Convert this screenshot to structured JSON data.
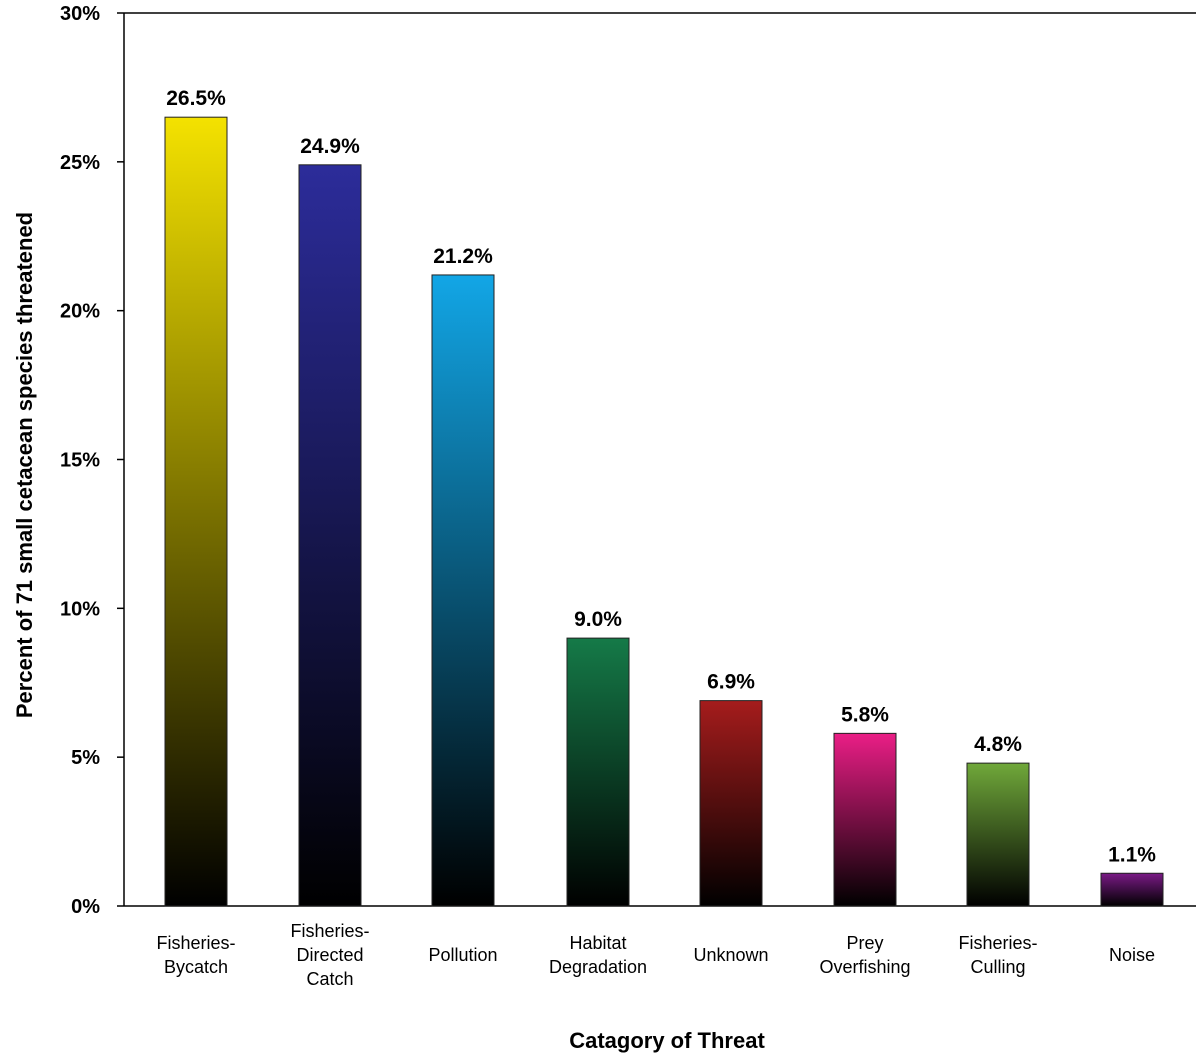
{
  "chart_data": {
    "type": "bar",
    "title": "",
    "xlabel": "Catagory of Threat",
    "ylabel": "Percent of 71 small cetacean species threatened",
    "ylim": [
      0,
      30
    ],
    "yticks": [
      0,
      5,
      10,
      15,
      20,
      25,
      30
    ],
    "ytick_labels": [
      "0%",
      "5%",
      "10%",
      "15%",
      "20%",
      "25%",
      "30%"
    ],
    "grid": false,
    "categories": [
      [
        "Fisheries-",
        "Bycatch"
      ],
      [
        "Fisheries-",
        "Directed",
        "Catch"
      ],
      [
        "Pollution"
      ],
      [
        "Habitat",
        "Degradation"
      ],
      [
        "Unknown"
      ],
      [
        "Prey",
        "Overfishing"
      ],
      [
        "Fisheries-",
        "Culling"
      ],
      [
        "Noise"
      ]
    ],
    "values": [
      26.5,
      24.9,
      21.2,
      9.0,
      6.9,
      5.8,
      4.8,
      1.1
    ],
    "data_labels": [
      "26.5%",
      "24.9%",
      "21.2%",
      "9.0%",
      "6.9%",
      "5.8%",
      "4.8%",
      "1.1%"
    ],
    "colors": [
      "#f4e200",
      "#2c2c9a",
      "#12a6e6",
      "#157a48",
      "#a51c1c",
      "#ea1e86",
      "#70a83a",
      "#7a1a86"
    ]
  }
}
